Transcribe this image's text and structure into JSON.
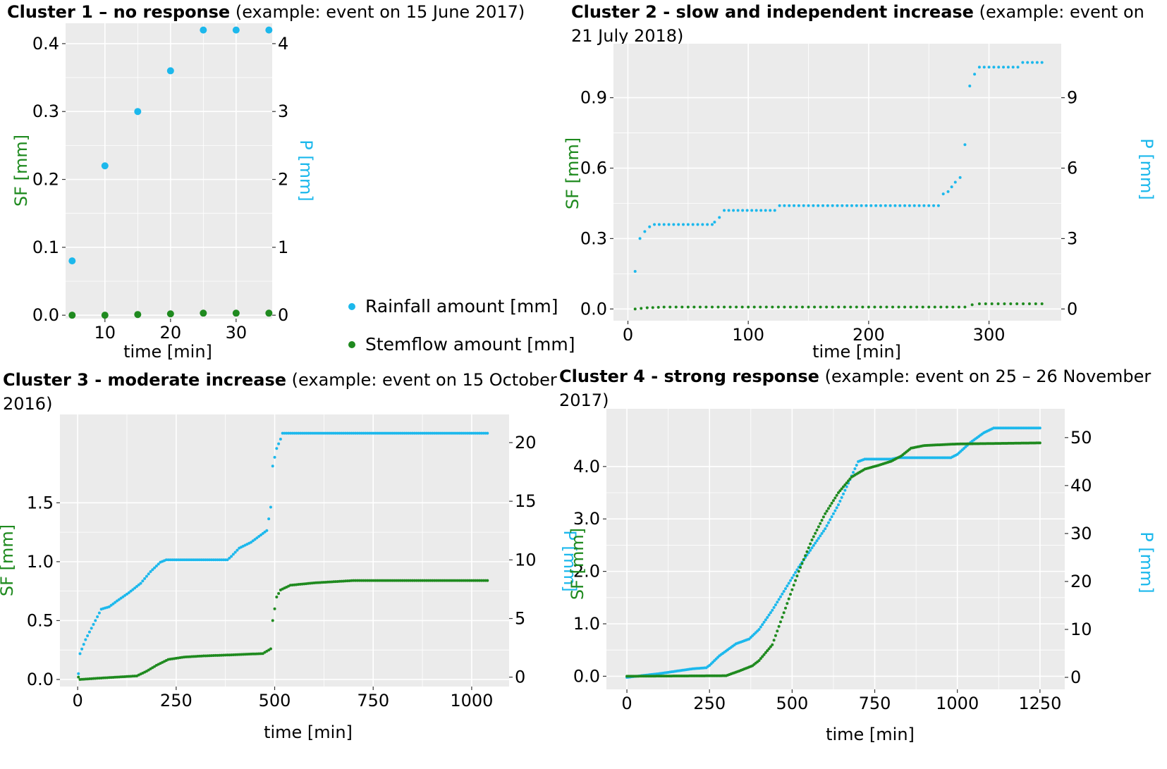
{
  "colors": {
    "rain": "#1cb8ec",
    "stem": "#1f8a1f",
    "panel_bg": "#ebebeb",
    "grid": "#ffffff",
    "sf_label": "#1f8a1f",
    "p_label": "#1cb8ec"
  },
  "legend": {
    "rain": "Rainfall amount [mm]",
    "stem": "Stemflow amount [mm]"
  },
  "panels": [
    {
      "title_bold": "Cluster 1 – no response",
      "title_rest": " (example: event on 15 June 2017)",
      "title_cont": "",
      "xlabel": "time [min]",
      "ylabel_left": "SF [mm]",
      "ylabel_right": "P [mm]"
    },
    {
      "title_bold": "Cluster 2 - slow and independent increase",
      "title_rest": " (example: event on",
      "title_cont": "21 July 2018)",
      "xlabel": "time [min]",
      "ylabel_left": "SF [mm]",
      "ylabel_right": "P [mm]"
    },
    {
      "title_bold": "Cluster 3 - moderate increase",
      "title_rest": " (example: event on 15 October",
      "title_cont": "2016)",
      "xlabel": "time [min]",
      "ylabel_left": "SF [mm]",
      "ylabel_right": "P [mm]"
    },
    {
      "title_bold": "Cluster 4 - strong response",
      "title_rest": " (example: event on 25 – 26 November",
      "title_cont": "2017)",
      "xlabel": "time [min]",
      "ylabel_left": "SF [mm]",
      "ylabel_right": "P [mm]"
    }
  ],
  "chart_data": [
    {
      "type": "scatter",
      "title": "Cluster 1 – no response (example: event on 15 June 2017)",
      "xlabel": "time [min]",
      "ylabel": "SF [mm]",
      "y2label": "P [mm]",
      "xlim": [
        4,
        35.5
      ],
      "ylim": [
        -0.005,
        0.43
      ],
      "y2lim": [
        -0.05,
        4.3
      ],
      "xticks": [
        10,
        20,
        30
      ],
      "xtick_labels": [
        "10",
        "20",
        "30"
      ],
      "yticks": [
        0,
        0.1,
        0.2,
        0.3,
        0.4
      ],
      "ytick_labels": [
        "0.0",
        "0.1",
        "0.2",
        "0.3",
        "0.4"
      ],
      "y2ticks": [
        0,
        1,
        2,
        3,
        4
      ],
      "y2tick_labels": [
        "0",
        "1",
        "2",
        "3",
        "4"
      ],
      "grid": true,
      "point_size": "large",
      "series": [
        {
          "name": "Rainfall amount [mm]",
          "axis": "right",
          "color": "#1cb8ec",
          "mode": "points",
          "points": [
            [
              5,
              0.8
            ],
            [
              10,
              2.2
            ],
            [
              15,
              3.0
            ],
            [
              20,
              3.6
            ],
            [
              25,
              4.2
            ],
            [
              30,
              4.2
            ],
            [
              35,
              4.2
            ]
          ]
        },
        {
          "name": "Stemflow amount [mm]",
          "axis": "left",
          "color": "#1f8a1f",
          "mode": "points",
          "points": [
            [
              5,
              0.0
            ],
            [
              10,
              0.0
            ],
            [
              15,
              0.001
            ],
            [
              20,
              0.002
            ],
            [
              25,
              0.003
            ],
            [
              30,
              0.003
            ],
            [
              35,
              0.003
            ]
          ]
        }
      ]
    },
    {
      "type": "scatter",
      "title": "Cluster 2 - slow and independent increase (example: event on 21 July 2018)",
      "xlabel": "time [min]",
      "ylabel": "SF [mm]",
      "y2label": "P [mm]",
      "xlim": [
        -12,
        360
      ],
      "ylim": [
        -0.05,
        1.13
      ],
      "y2lim": [
        -0.5,
        11.3
      ],
      "xticks": [
        0,
        100,
        200,
        300
      ],
      "xtick_labels": [
        "0",
        "100",
        "200",
        "300"
      ],
      "yticks": [
        0,
        0.3,
        0.6,
        0.9
      ],
      "ytick_labels": [
        "0.0",
        "0.3",
        "0.6",
        "0.9"
      ],
      "y2ticks": [
        0,
        3,
        6,
        9
      ],
      "y2tick_labels": [
        "0",
        "3",
        "6",
        "9"
      ],
      "grid": true,
      "point_size": "small",
      "series": [
        {
          "name": "Rainfall amount [mm]",
          "axis": "right",
          "color": "#1cb8ec",
          "mode": "steps",
          "dx": 4,
          "points": [
            [
              6,
              1.6
            ],
            [
              10,
              3.0
            ],
            [
              14,
              3.3
            ],
            [
              18,
              3.5
            ],
            [
              22,
              3.6
            ],
            [
              70,
              3.6
            ],
            [
              72,
              3.7
            ],
            [
              76,
              3.9
            ],
            [
              80,
              4.2
            ],
            [
              122,
              4.2
            ],
            [
              126,
              4.4
            ],
            [
              258,
              4.4
            ],
            [
              262,
              4.9
            ],
            [
              266,
              5.0
            ],
            [
              272,
              5.4
            ],
            [
              276,
              5.6
            ],
            [
              280,
              7.0
            ],
            [
              284,
              9.5
            ],
            [
              288,
              10.0
            ],
            [
              292,
              10.3
            ],
            [
              324,
              10.3
            ],
            [
              328,
              10.5
            ],
            [
              344,
              10.5
            ]
          ]
        },
        {
          "name": "Stemflow amount [mm]",
          "axis": "left",
          "color": "#1f8a1f",
          "mode": "steps",
          "dx": 5,
          "points": [
            [
              6,
              0.0
            ],
            [
              16,
              0.005
            ],
            [
              30,
              0.008
            ],
            [
              280,
              0.008
            ],
            [
              286,
              0.018
            ],
            [
              292,
              0.022
            ],
            [
              344,
              0.022
            ]
          ]
        }
      ]
    },
    {
      "type": "scatter",
      "title": "Cluster 3 - moderate increase (example: event on 15 October 2016)",
      "xlabel": "time [min]",
      "ylabel": "SF [mm]",
      "y2label": "P [mm]",
      "xlim": [
        -45,
        1095
      ],
      "ylim": [
        -0.06,
        2.25
      ],
      "y2lim": [
        -0.8,
        22.4
      ],
      "xticks": [
        0,
        250,
        500,
        750,
        1000
      ],
      "xtick_labels": [
        "0",
        "250",
        "500",
        "750",
        "1000"
      ],
      "yticks": [
        0,
        0.5,
        1.0,
        1.5
      ],
      "ytick_labels": [
        "0.0",
        "0.5",
        "1.0",
        "1.5"
      ],
      "y2ticks": [
        0,
        5,
        10,
        15,
        20
      ],
      "y2tick_labels": [
        "0",
        "5",
        "10",
        "15",
        "20"
      ],
      "grid": true,
      "point_size": "small",
      "series": [
        {
          "name": "Rainfall amount [mm]",
          "axis": "right",
          "color": "#1cb8ec",
          "mode": "steps",
          "dx": 5,
          "points": [
            [
              2,
              0.3
            ],
            [
              6,
              2.0
            ],
            [
              20,
              3.2
            ],
            [
              40,
              4.5
            ],
            [
              60,
              5.8
            ],
            [
              80,
              6.0
            ],
            [
              100,
              6.5
            ],
            [
              130,
              7.2
            ],
            [
              160,
              8.0
            ],
            [
              185,
              9.0
            ],
            [
              210,
              9.8
            ],
            [
              225,
              10.0
            ],
            [
              380,
              10.0
            ],
            [
              390,
              10.3
            ],
            [
              410,
              11.0
            ],
            [
              440,
              11.5
            ],
            [
              460,
              12.0
            ],
            [
              480,
              12.5
            ],
            [
              490,
              14.5
            ],
            [
              495,
              18.0
            ],
            [
              505,
              19.5
            ],
            [
              515,
              20.3
            ],
            [
              520,
              20.8
            ],
            [
              1040,
              20.8
            ]
          ]
        },
        {
          "name": "Stemflow amount [mm]",
          "axis": "left",
          "color": "#1f8a1f",
          "mode": "steps",
          "dx": 5,
          "points": [
            [
              2,
              0.02
            ],
            [
              6,
              0.0
            ],
            [
              50,
              0.01
            ],
            [
              150,
              0.03
            ],
            [
              175,
              0.07
            ],
            [
              200,
              0.12
            ],
            [
              230,
              0.17
            ],
            [
              270,
              0.19
            ],
            [
              320,
              0.2
            ],
            [
              400,
              0.21
            ],
            [
              470,
              0.22
            ],
            [
              490,
              0.26
            ],
            [
              495,
              0.5
            ],
            [
              505,
              0.7
            ],
            [
              515,
              0.76
            ],
            [
              540,
              0.8
            ],
            [
              600,
              0.82
            ],
            [
              700,
              0.84
            ],
            [
              1040,
              0.84
            ]
          ]
        }
      ]
    },
    {
      "type": "scatter",
      "title": "Cluster 4 - strong response (example: event on 25 – 26 November 2017)",
      "xlabel": "time [min]",
      "ylabel": "SF [mm]",
      "y2label": "P [mm]",
      "xlim": [
        -62,
        1325
      ],
      "ylim": [
        -0.25,
        5.1
      ],
      "y2lim": [
        -2.5,
        56
      ],
      "xticks": [
        0,
        250,
        500,
        750,
        1000,
        1250
      ],
      "xtick_labels": [
        "0",
        "250",
        "500",
        "750",
        "1000",
        "1250"
      ],
      "yticks": [
        0,
        1.0,
        2.0,
        3.0,
        4.0
      ],
      "ytick_labels": [
        "0.0",
        "1.0",
        "2.0",
        "3.0",
        "4.0"
      ],
      "y2ticks": [
        0,
        10,
        20,
        30,
        40,
        50
      ],
      "y2tick_labels": [
        "0",
        "10",
        "20",
        "30",
        "40",
        "50"
      ],
      "grid": true,
      "point_size": "small",
      "series": [
        {
          "name": "Rainfall amount [mm]",
          "axis": "right",
          "color": "#1cb8ec",
          "mode": "steps",
          "dx": 5,
          "points": [
            [
              0,
              0.0
            ],
            [
              100,
              0.8
            ],
            [
              200,
              1.8
            ],
            [
              240,
              2.0
            ],
            [
              250,
              2.5
            ],
            [
              280,
              4.5
            ],
            [
              330,
              7.0
            ],
            [
              370,
              8.0
            ],
            [
              400,
              10.0
            ],
            [
              440,
              14.0
            ],
            [
              480,
              18.5
            ],
            [
              520,
              23.0
            ],
            [
              560,
              27.0
            ],
            [
              600,
              31.0
            ],
            [
              640,
              36.0
            ],
            [
              680,
              42.0
            ],
            [
              700,
              45.0
            ],
            [
              720,
              45.5
            ],
            [
              800,
              45.5
            ],
            [
              820,
              45.8
            ],
            [
              980,
              45.8
            ],
            [
              1000,
              46.5
            ],
            [
              1040,
              49.0
            ],
            [
              1080,
              51.0
            ],
            [
              1110,
              52.0
            ],
            [
              1250,
              52.0
            ]
          ]
        },
        {
          "name": "Stemflow amount [mm]",
          "axis": "left",
          "color": "#1f8a1f",
          "mode": "steps",
          "dx": 5,
          "points": [
            [
              0,
              0.0
            ],
            [
              300,
              0.01
            ],
            [
              340,
              0.1
            ],
            [
              380,
              0.2
            ],
            [
              400,
              0.3
            ],
            [
              440,
              0.6
            ],
            [
              480,
              1.3
            ],
            [
              520,
              2.0
            ],
            [
              560,
              2.6
            ],
            [
              600,
              3.1
            ],
            [
              640,
              3.5
            ],
            [
              680,
              3.8
            ],
            [
              720,
              3.95
            ],
            [
              760,
              4.02
            ],
            [
              800,
              4.1
            ],
            [
              830,
              4.2
            ],
            [
              860,
              4.35
            ],
            [
              900,
              4.4
            ],
            [
              1000,
              4.43
            ],
            [
              1250,
              4.45
            ]
          ]
        }
      ]
    }
  ]
}
